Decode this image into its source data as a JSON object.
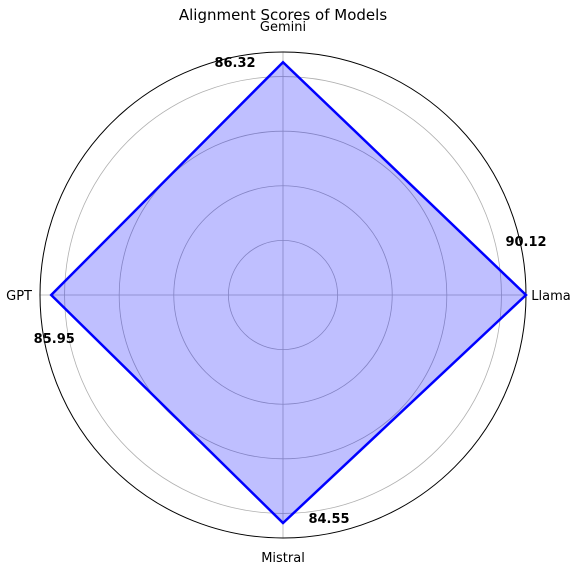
{
  "chart_data": {
    "type": "radar",
    "title": "Alignment Scores of Models",
    "categories": [
      "Llama",
      "Gemini",
      "GPT",
      "Mistral"
    ],
    "series": [
      {
        "values": [
          90.12,
          86.32,
          85.95,
          84.55
        ]
      }
    ],
    "value_labels": [
      "90.12",
      "86.32",
      "85.95",
      "84.55"
    ],
    "rlim": [
      0,
      90.12
    ],
    "grid": true,
    "colors": {
      "line": "#0000ff",
      "fill": "#0000ff",
      "fill_opacity": 0.25,
      "grid": "#b0b0b0",
      "frame": "#000000"
    }
  }
}
